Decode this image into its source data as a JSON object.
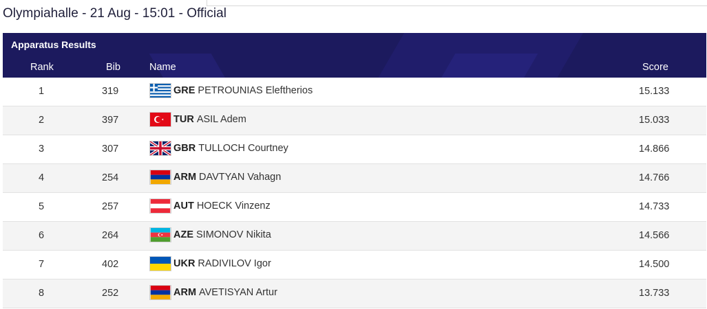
{
  "header": {
    "title": "Olympiahalle - 21 Aug - 15:01 - Official"
  },
  "panel": {
    "title": "Apparatus Results",
    "columns": {
      "rank": "Rank",
      "bib": "Bib",
      "name": "Name",
      "score": "Score"
    }
  },
  "results": [
    {
      "rank": "1",
      "bib": "319",
      "noc": "GRE",
      "name": "PETROUNIAS Eleftherios",
      "score": "15.133",
      "flag": "greece-flag-icon"
    },
    {
      "rank": "2",
      "bib": "397",
      "noc": "TUR",
      "name": "ASIL Adem",
      "score": "15.033",
      "flag": "turkey-flag-icon"
    },
    {
      "rank": "3",
      "bib": "307",
      "noc": "GBR",
      "name": "TULLOCH Courtney",
      "score": "14.866",
      "flag": "great-britain-flag-icon"
    },
    {
      "rank": "4",
      "bib": "254",
      "noc": "ARM",
      "name": "DAVTYAN Vahagn",
      "score": "14.766",
      "flag": "armenia-flag-icon"
    },
    {
      "rank": "5",
      "bib": "257",
      "noc": "AUT",
      "name": "HOECK Vinzenz",
      "score": "14.733",
      "flag": "austria-flag-icon"
    },
    {
      "rank": "6",
      "bib": "264",
      "noc": "AZE",
      "name": "SIMONOV Nikita",
      "score": "14.566",
      "flag": "azerbaijan-flag-icon"
    },
    {
      "rank": "7",
      "bib": "402",
      "noc": "UKR",
      "name": "RADIVILOV Igor",
      "score": "14.500",
      "flag": "ukraine-flag-icon"
    },
    {
      "rank": "8",
      "bib": "252",
      "noc": "ARM",
      "name": "AVETISYAN Artur",
      "score": "13.733",
      "flag": "armenia-flag-icon"
    }
  ],
  "colors": {
    "header_bg": "#1c1a5e",
    "row_alt": "#f4f4f4"
  }
}
